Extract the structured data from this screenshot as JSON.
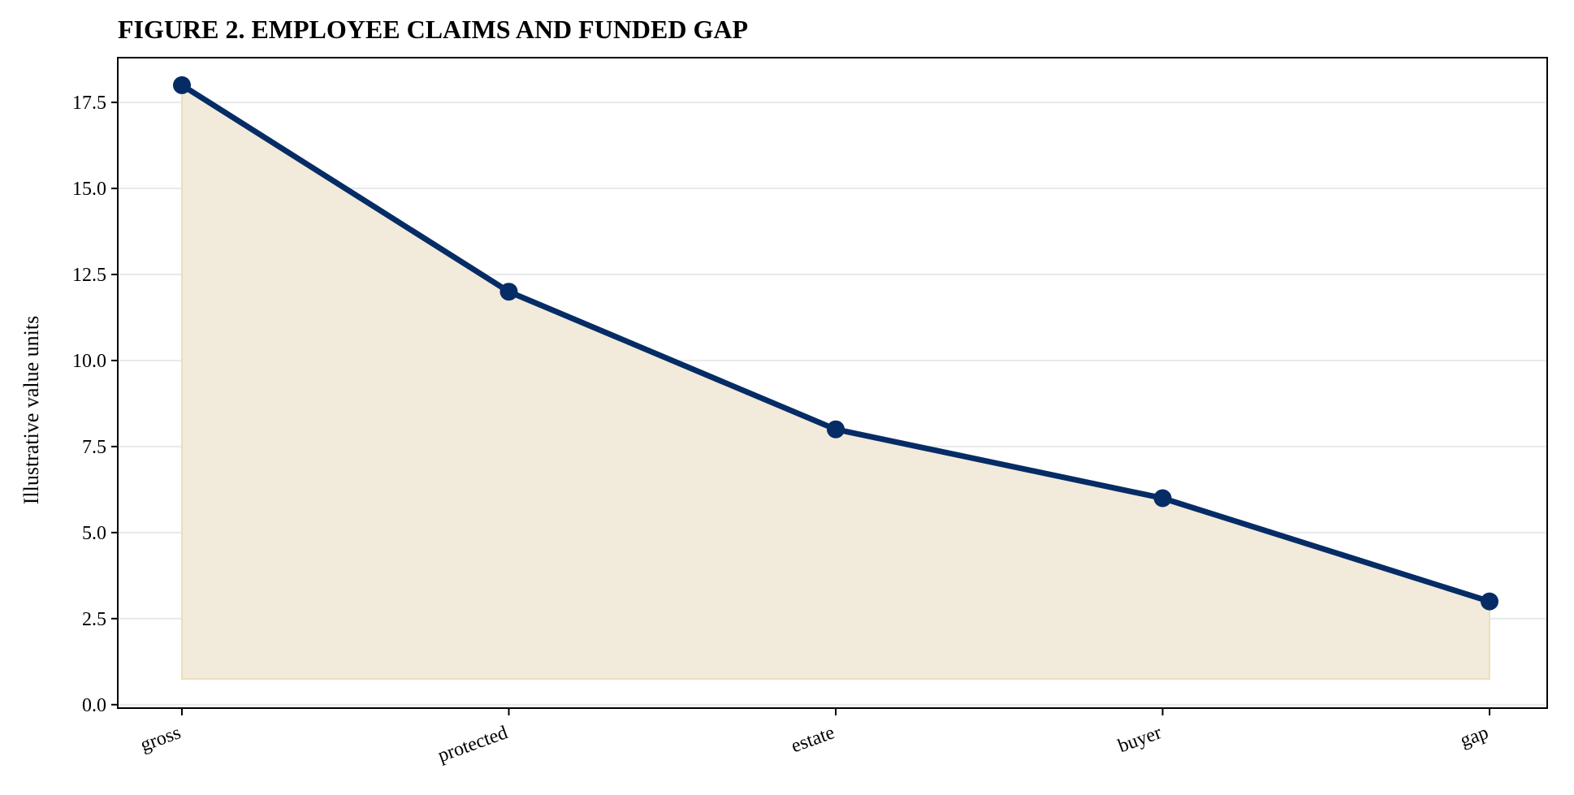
{
  "chart_data": {
    "type": "area",
    "title": "FIGURE 2. EMPLOYEE CLAIMS AND FUNDED GAP",
    "xlabel": "",
    "ylabel": "Illustrative value units",
    "categories": [
      "gross",
      "protected",
      "estate",
      "buyer",
      "gap"
    ],
    "series": [
      {
        "values": [
          18.0,
          12.0,
          8.0,
          6.0,
          3.0
        ]
      }
    ],
    "area_baseline": 0.75,
    "ylim": [
      -0.1,
      18.8
    ],
    "yticks": [
      0.0,
      2.5,
      5.0,
      7.5,
      10.0,
      12.5,
      15.0,
      17.5
    ],
    "ytick_labels": [
      "0.0",
      "2.5",
      "5.0",
      "7.5",
      "10.0",
      "12.5",
      "15.0",
      "17.5"
    ],
    "grid": "horizontal",
    "legend": "none",
    "colors": {
      "line": "#062c66",
      "marker": "#062c66",
      "fill": "#f2eada",
      "fill_edge": "#ecdfbd",
      "grid": "#e9e9e9"
    }
  }
}
